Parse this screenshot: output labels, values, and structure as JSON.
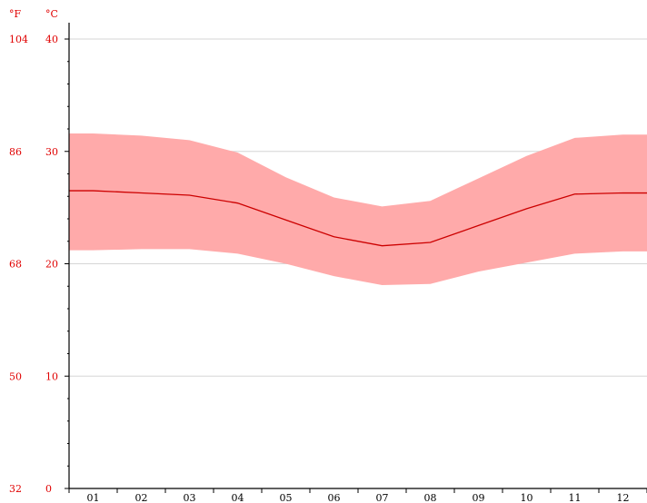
{
  "chart_data": {
    "type": "area",
    "title": "",
    "xlabel": "",
    "ylabel": "",
    "categories": [
      "01",
      "02",
      "03",
      "04",
      "05",
      "06",
      "07",
      "08",
      "09",
      "10",
      "11",
      "12"
    ],
    "unit_labels": {
      "fahrenheit": "°F",
      "celsius": "°C"
    },
    "y_ticks": [
      {
        "celsius": 0,
        "fahrenheit": 32,
        "celsius_label": "0",
        "fahrenheit_label": "32"
      },
      {
        "celsius": 10,
        "fahrenheit": 50,
        "celsius_label": "10",
        "fahrenheit_label": "50"
      },
      {
        "celsius": 20,
        "fahrenheit": 68,
        "celsius_label": "20",
        "fahrenheit_label": "68"
      },
      {
        "celsius": 30,
        "fahrenheit": 86,
        "celsius_label": "30",
        "fahrenheit_label": "86"
      },
      {
        "celsius": 40,
        "fahrenheit": 104,
        "celsius_label": "40",
        "fahrenheit_label": "104"
      }
    ],
    "ylim": [
      0,
      41
    ],
    "grid": true,
    "series": [
      {
        "kind": "band-upper",
        "color": "#ffaaaa",
        "values": [
          31.6,
          31.4,
          31.0,
          29.9,
          27.7,
          25.9,
          25.1,
          25.6,
          27.6,
          29.6,
          31.2,
          31.5
        ]
      },
      {
        "kind": "line",
        "color": "#cc0000",
        "values": [
          26.5,
          26.3,
          26.1,
          25.4,
          23.9,
          22.4,
          21.6,
          21.9,
          23.4,
          24.9,
          26.2,
          26.3
        ]
      },
      {
        "kind": "band-lower",
        "color": "#ffaaaa",
        "values": [
          21.2,
          21.3,
          21.3,
          20.9,
          20.0,
          18.9,
          18.1,
          18.2,
          19.3,
          20.1,
          20.9,
          21.1
        ]
      }
    ]
  }
}
